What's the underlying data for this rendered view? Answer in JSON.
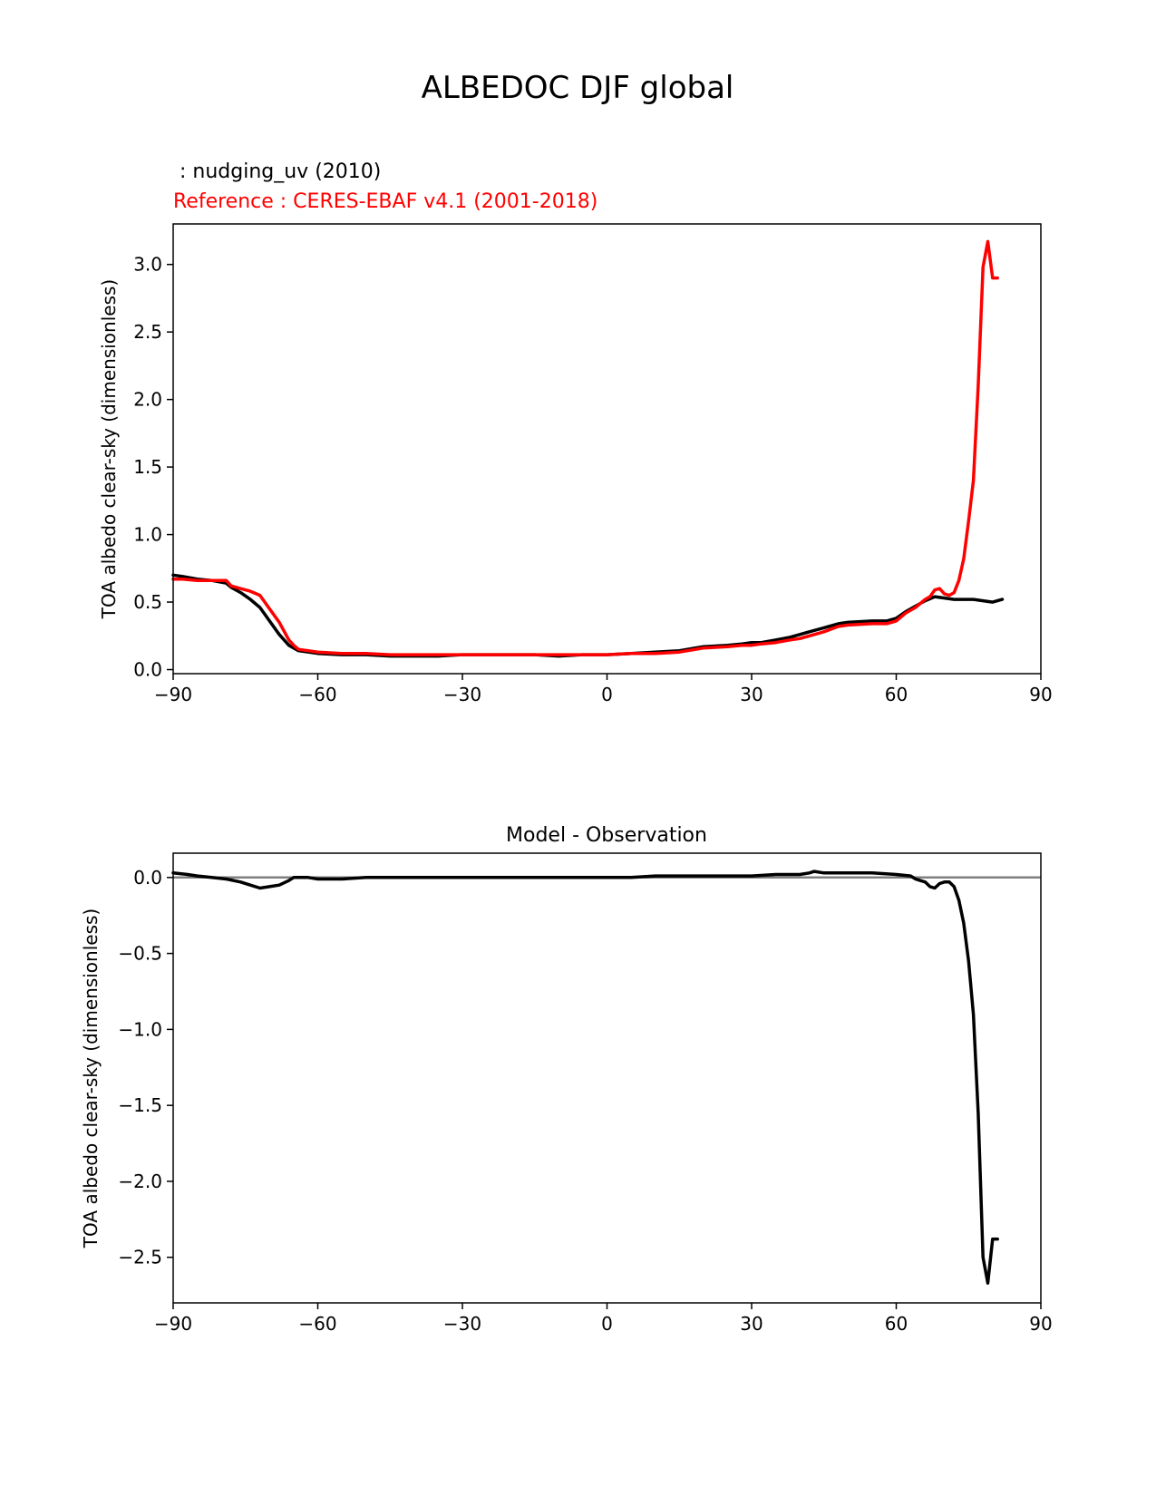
{
  "figure": {
    "title": "ALBEDOC DJF global"
  },
  "chart_data": [
    {
      "type": "line",
      "subtitle_model": " : nudging_uv (2010)",
      "subtitle_reference": "Reference : CERES-EBAF v4.1 (2001-2018)",
      "xlabel": "",
      "ylabel": "TOA albedo clear-sky (dimensionless)",
      "xlim": [
        -90,
        90
      ],
      "ylim": [
        -0.03,
        3.3
      ],
      "xticks": [
        "−90",
        "−60",
        "−30",
        "0",
        "30",
        "60",
        "90"
      ],
      "xtick_values": [
        -90,
        -60,
        -30,
        0,
        30,
        60,
        90
      ],
      "yticks": [
        "0.0",
        "0.5",
        "1.0",
        "1.5",
        "2.0",
        "2.5",
        "3.0"
      ],
      "ytick_values": [
        0,
        0.5,
        1.0,
        1.5,
        2.0,
        2.5,
        3.0
      ],
      "grid": false,
      "series": [
        {
          "color": "#000000",
          "x": [
            -90,
            -88,
            -85,
            -82,
            -79,
            -78,
            -76,
            -74,
            -72,
            -70,
            -68,
            -66,
            -65,
            -64,
            -62,
            -60,
            -55,
            -50,
            -45,
            -40,
            -35,
            -30,
            -25,
            -20,
            -15,
            -10,
            -5,
            0,
            5,
            10,
            15,
            20,
            25,
            28,
            30,
            32,
            35,
            38,
            40,
            42,
            45,
            48,
            50,
            55,
            58,
            60,
            62,
            64,
            66,
            68,
            70,
            72,
            74,
            76,
            78,
            80,
            82
          ],
          "y": [
            0.7,
            0.69,
            0.67,
            0.66,
            0.64,
            0.61,
            0.57,
            0.52,
            0.46,
            0.36,
            0.26,
            0.18,
            0.16,
            0.14,
            0.13,
            0.12,
            0.11,
            0.11,
            0.1,
            0.1,
            0.1,
            0.11,
            0.11,
            0.11,
            0.11,
            0.1,
            0.11,
            0.11,
            0.12,
            0.13,
            0.14,
            0.17,
            0.18,
            0.19,
            0.2,
            0.2,
            0.22,
            0.24,
            0.26,
            0.28,
            0.31,
            0.34,
            0.35,
            0.36,
            0.36,
            0.38,
            0.43,
            0.47,
            0.51,
            0.54,
            0.53,
            0.52,
            0.52,
            0.52,
            0.51,
            0.5,
            0.52
          ]
        },
        {
          "color": "#ff0000",
          "x": [
            -90,
            -88,
            -85,
            -82,
            -79,
            -78,
            -76,
            -74,
            -72,
            -70,
            -68,
            -66,
            -65,
            -64,
            -62,
            -60,
            -55,
            -50,
            -45,
            -40,
            -35,
            -30,
            -25,
            -20,
            -15,
            -10,
            -5,
            0,
            5,
            10,
            15,
            20,
            25,
            28,
            30,
            32,
            35,
            38,
            40,
            42,
            45,
            48,
            50,
            55,
            58,
            60,
            62,
            64,
            66,
            67,
            68,
            69,
            70,
            71,
            72,
            73,
            74,
            75,
            76,
            77,
            78,
            79,
            80,
            81
          ],
          "y": [
            0.67,
            0.67,
            0.66,
            0.66,
            0.66,
            0.62,
            0.6,
            0.58,
            0.55,
            0.45,
            0.35,
            0.22,
            0.18,
            0.15,
            0.14,
            0.13,
            0.12,
            0.12,
            0.11,
            0.11,
            0.11,
            0.11,
            0.11,
            0.11,
            0.11,
            0.11,
            0.11,
            0.11,
            0.12,
            0.12,
            0.13,
            0.16,
            0.17,
            0.18,
            0.18,
            0.19,
            0.2,
            0.22,
            0.23,
            0.25,
            0.28,
            0.32,
            0.33,
            0.34,
            0.34,
            0.36,
            0.42,
            0.46,
            0.52,
            0.54,
            0.59,
            0.6,
            0.56,
            0.55,
            0.57,
            0.66,
            0.82,
            1.1,
            1.4,
            2.1,
            2.98,
            3.17,
            2.9,
            2.9
          ]
        }
      ]
    },
    {
      "type": "line",
      "title": "Model - Observation",
      "xlabel": "",
      "ylabel": "TOA albedo clear-sky (dimensionless)",
      "xlim": [
        -90,
        90
      ],
      "ylim": [
        -2.8,
        0.16
      ],
      "xticks": [
        "−90",
        "−60",
        "−30",
        "0",
        "30",
        "60",
        "90"
      ],
      "xtick_values": [
        -90,
        -60,
        -30,
        0,
        30,
        60,
        90
      ],
      "yticks": [
        "0.0",
        "−0.5",
        "−1.0",
        "−1.5",
        "−2.0",
        "−2.5"
      ],
      "ytick_values": [
        0,
        -0.5,
        -1.0,
        -1.5,
        -2.0,
        -2.5
      ],
      "grid": false,
      "zero_line_color": "#808080",
      "series": [
        {
          "color": "#000000",
          "x": [
            -90,
            -87,
            -85,
            -82,
            -79,
            -76,
            -74,
            -72,
            -70,
            -68,
            -66,
            -65,
            -64,
            -62,
            -60,
            -55,
            -50,
            -40,
            -30,
            -20,
            -10,
            0,
            5,
            10,
            15,
            20,
            25,
            30,
            35,
            38,
            40,
            42,
            43,
            45,
            50,
            55,
            60,
            63,
            64,
            65,
            66,
            67,
            68,
            69,
            70,
            71,
            72,
            73,
            74,
            75,
            76,
            77,
            78,
            79,
            80,
            81
          ],
          "y": [
            0.03,
            0.02,
            0.01,
            0.0,
            -0.01,
            -0.03,
            -0.05,
            -0.07,
            -0.06,
            -0.05,
            -0.02,
            0.0,
            0.0,
            0.0,
            -0.01,
            -0.01,
            0.0,
            0.0,
            0.0,
            0.0,
            0.0,
            0.0,
            0.0,
            0.01,
            0.01,
            0.01,
            0.01,
            0.01,
            0.02,
            0.02,
            0.02,
            0.03,
            0.04,
            0.03,
            0.03,
            0.03,
            0.02,
            0.01,
            -0.01,
            -0.02,
            -0.03,
            -0.06,
            -0.07,
            -0.04,
            -0.03,
            -0.03,
            -0.06,
            -0.15,
            -0.3,
            -0.55,
            -0.9,
            -1.55,
            -2.5,
            -2.67,
            -2.38,
            -2.38
          ]
        }
      ]
    }
  ]
}
